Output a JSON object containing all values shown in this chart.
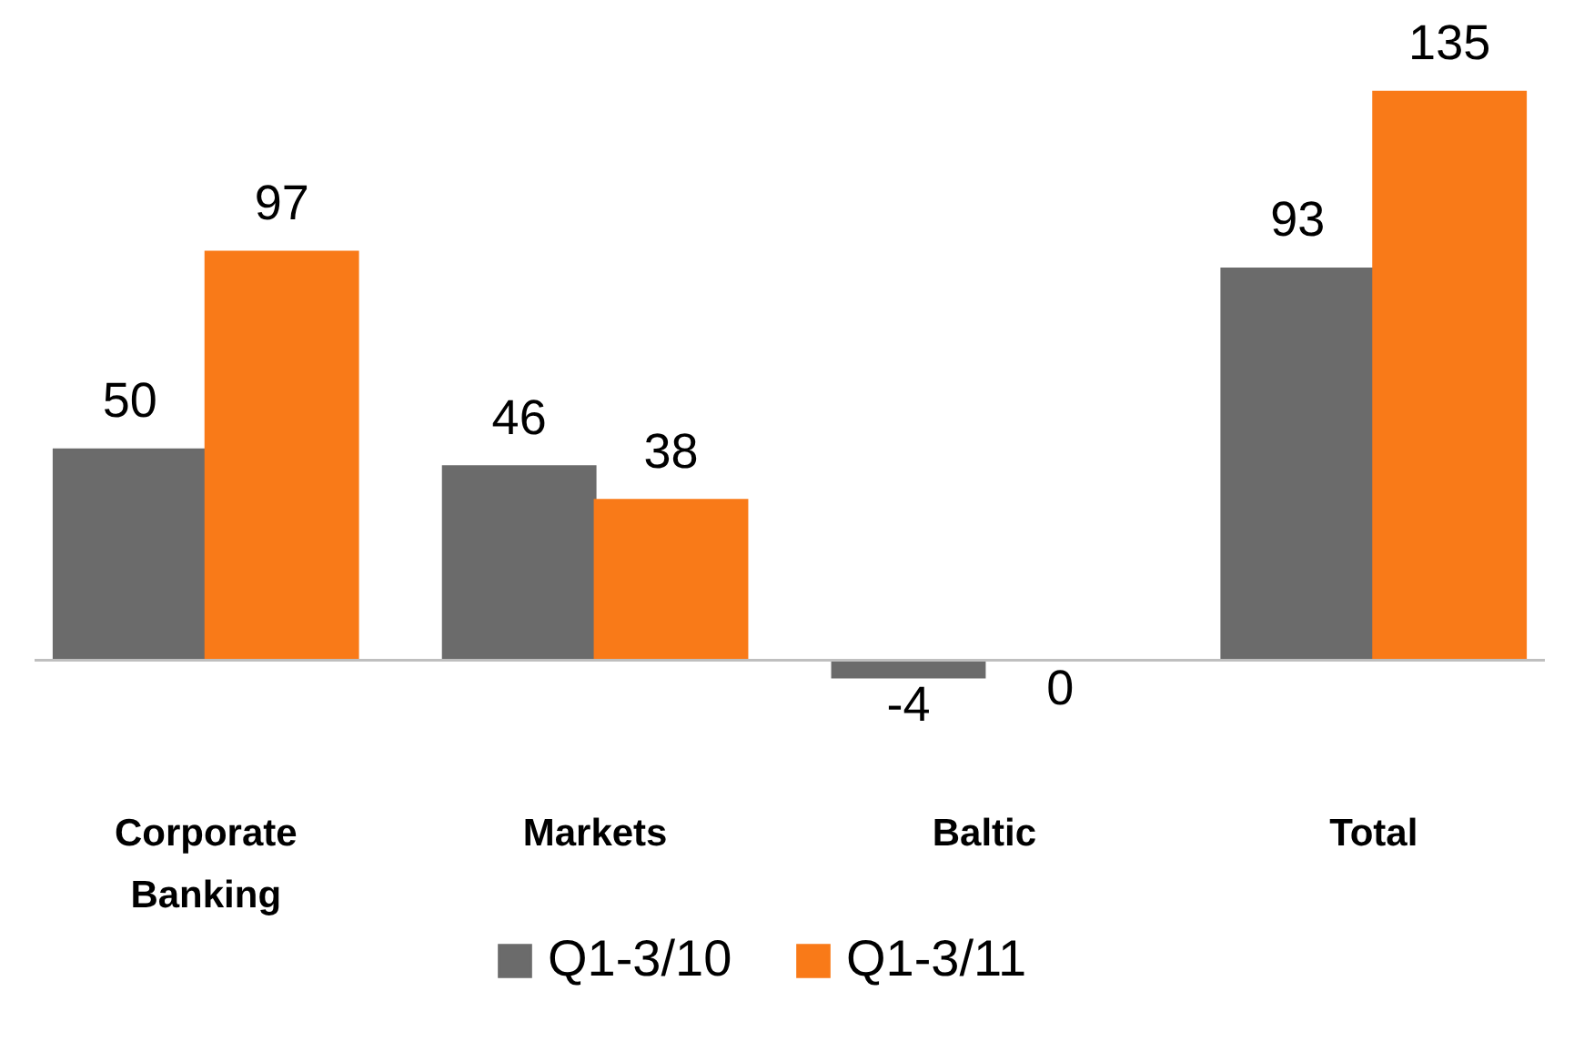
{
  "chart_data": {
    "type": "bar",
    "categories": [
      "Corporate Banking",
      "Markets",
      "Baltic",
      "Total"
    ],
    "series": [
      {
        "name": "Q1-3/10",
        "color": "#6b6b6b",
        "values": [
          50,
          46,
          -4,
          93
        ]
      },
      {
        "name": "Q1-3/11",
        "color": "#f97a18",
        "values": [
          97,
          38,
          0,
          135
        ]
      }
    ],
    "data_labels": true,
    "legend": "bottom"
  }
}
